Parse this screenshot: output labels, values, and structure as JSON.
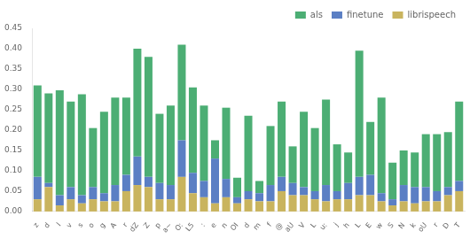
{
  "chart_data": {
    "type": "bar",
    "stacked": true,
    "grid": false,
    "legend": "upper right",
    "categories": [
      "z",
      "d",
      "l",
      "v",
      "s",
      "o",
      "g",
      "A",
      "r",
      "dZ",
      "Z",
      "p",
      "a~",
      "O:",
      "L5",
      ":",
      "e",
      "n",
      "OI",
      "d",
      "m",
      "f",
      "@",
      "aU",
      "V",
      "L",
      "u:",
      "j",
      "h",
      "L",
      "E",
      "w",
      "S",
      "N",
      "k",
      "oU",
      "r",
      "D",
      "T"
    ],
    "series": [
      {
        "name": "librispeech",
        "color": "#c9b45e",
        "values": [
          0.03,
          0.06,
          0.015,
          0.03,
          0.02,
          0.03,
          0.025,
          0.025,
          0.05,
          0.065,
          0.06,
          0.03,
          0.03,
          0.085,
          0.045,
          0.035,
          0.02,
          0.035,
          0.02,
          0.03,
          0.025,
          0.025,
          0.05,
          0.04,
          0.04,
          0.03,
          0.025,
          0.03,
          0.03,
          0.04,
          0.04,
          0.025,
          0.015,
          0.025,
          0.02,
          0.025,
          0.025,
          0.04,
          0.05
        ]
      },
      {
        "name": "finetune",
        "color": "#5b7fc4",
        "values": [
          0.055,
          0.01,
          0.025,
          0.03,
          0.02,
          0.03,
          0.02,
          0.04,
          0.04,
          0.07,
          0.025,
          0.04,
          0.035,
          0.09,
          0.05,
          0.04,
          0.11,
          0.045,
          0.015,
          0.02,
          0.02,
          0.04,
          0.035,
          0.03,
          0.02,
          0.02,
          0.04,
          0.02,
          0.04,
          0.045,
          0.05,
          0.02,
          0.015,
          0.04,
          0.04,
          0.035,
          0.025,
          0.02,
          0.025
        ]
      },
      {
        "name": "als",
        "color": "#4cae74",
        "values": [
          0.225,
          0.22,
          0.258,
          0.21,
          0.248,
          0.145,
          0.2,
          0.215,
          0.19,
          0.265,
          0.295,
          0.17,
          0.195,
          0.235,
          0.21,
          0.185,
          0.045,
          0.175,
          0.048,
          0.185,
          0.03,
          0.145,
          0.185,
          0.09,
          0.185,
          0.155,
          0.21,
          0.115,
          0.075,
          0.31,
          0.13,
          0.235,
          0.09,
          0.085,
          0.085,
          0.13,
          0.14,
          0.135,
          0.195
        ]
      }
    ],
    "ylim": [
      0.0,
      0.45
    ],
    "yticks": [
      {
        "value": 0.0,
        "label": "0.00"
      },
      {
        "value": 0.05,
        "label": "0.05"
      },
      {
        "value": 0.1,
        "label": "0.10"
      },
      {
        "value": 0.15,
        "label": "0.15"
      },
      {
        "value": 0.2,
        "label": "0.20"
      },
      {
        "value": 0.25,
        "label": "0.25"
      },
      {
        "value": 0.3,
        "label": "0.30"
      },
      {
        "value": 0.35,
        "label": "0.35"
      },
      {
        "value": 0.4,
        "label": "0.40"
      },
      {
        "value": 0.45,
        "label": "0.45"
      }
    ]
  }
}
